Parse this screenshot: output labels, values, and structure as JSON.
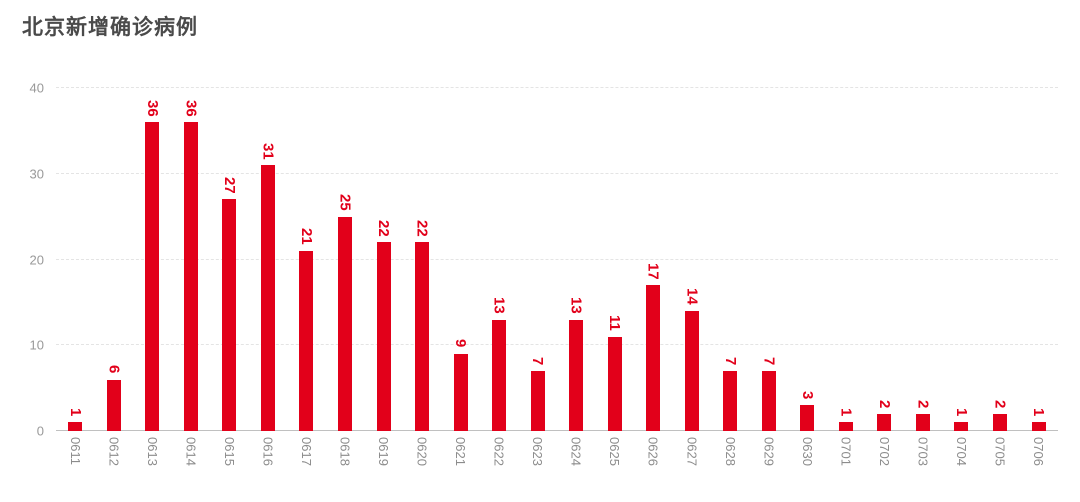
{
  "page": {
    "title": "北京新增确诊病例"
  },
  "chart_data": {
    "type": "bar",
    "title": "北京新增确诊病例",
    "categories": [
      "0611",
      "0612",
      "0613",
      "0614",
      "0615",
      "0616",
      "0617",
      "0618",
      "0619",
      "0620",
      "0621",
      "0622",
      "0623",
      "0624",
      "0625",
      "0626",
      "0627",
      "0628",
      "0629",
      "0630",
      "0701",
      "0702",
      "0703",
      "0704",
      "0705",
      "0706"
    ],
    "values": [
      1,
      6,
      36,
      36,
      27,
      31,
      21,
      25,
      22,
      22,
      9,
      13,
      7,
      13,
      11,
      17,
      14,
      7,
      7,
      3,
      1,
      2,
      2,
      1,
      2,
      1
    ],
    "xlabel": "",
    "ylabel": "",
    "ylim": [
      0,
      40
    ],
    "yticks": [
      0,
      10,
      20,
      30,
      40
    ],
    "grid": true,
    "gridline_style": "dashed",
    "legend_position": "none",
    "value_labels_shown": true,
    "label_rotation_deg": 90
  },
  "colors": {
    "background": "#ffffff",
    "bar": "#e2001a",
    "value_label": "#e2001a",
    "title": "#4a4a4a",
    "y_tick_label": "#999999",
    "x_tick_label": "#8c8c8c",
    "gridline": "#e4e4e4",
    "axis_line": "#c0c0c0"
  }
}
